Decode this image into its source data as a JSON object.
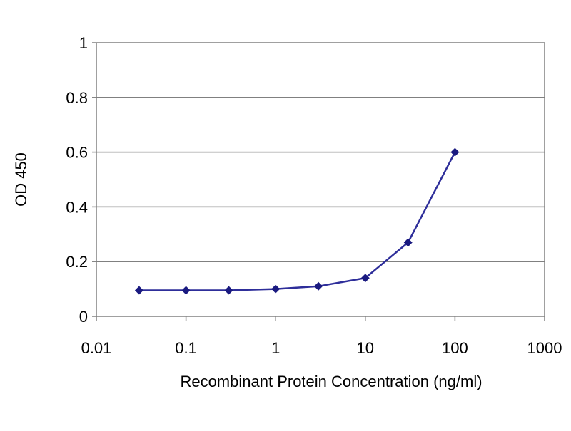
{
  "chart_data": {
    "type": "line",
    "title": "",
    "xlabel": "Recombinant Protein Concentration (ng/ml)",
    "ylabel": "OD 450",
    "x_scale": "log",
    "xlim": [
      0.01,
      1000
    ],
    "ylim": [
      0,
      1
    ],
    "x_ticks": [
      0.01,
      0.1,
      1,
      10,
      100,
      1000
    ],
    "x_tick_labels": [
      "0.01",
      "0.1",
      "1",
      "10",
      "100",
      "1000"
    ],
    "y_ticks": [
      0,
      0.2,
      0.4,
      0.6,
      0.8,
      1
    ],
    "y_tick_labels": [
      "0",
      "0.2",
      "0.4",
      "0.6",
      "0.8",
      "1"
    ],
    "grid": "horizontal",
    "legend": "none",
    "series": [
      {
        "x": [
          0.03,
          0.1,
          0.3,
          1,
          3,
          10,
          30,
          100
        ],
        "y": [
          0.095,
          0.095,
          0.095,
          0.1,
          0.11,
          0.14,
          0.27,
          0.6
        ]
      }
    ],
    "colors": {
      "line": "#2e2e9a",
      "marker": "#1a1a80",
      "grid": "#808080",
      "frame": "#808080",
      "background": "#ffffff"
    }
  }
}
